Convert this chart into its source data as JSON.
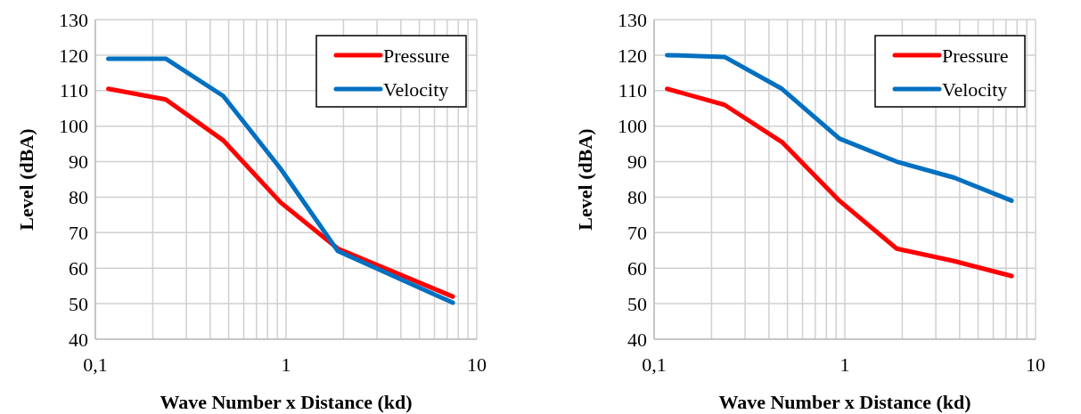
{
  "chart_data": [
    {
      "type": "line",
      "xlabel": "Wave Number x Distance (kd)",
      "ylabel": "Level (dBA)",
      "log": "x",
      "grid": true,
      "legend": "top right",
      "line_style": "solid",
      "marker": "none",
      "xlim": [
        0.1,
        10
      ],
      "ylim": [
        40,
        130
      ],
      "xticks": [
        {
          "value": 0.1,
          "label": "0,1"
        },
        {
          "value": 0.2,
          "label": null
        },
        {
          "value": 0.3,
          "label": null
        },
        {
          "value": 0.4,
          "label": null
        },
        {
          "value": 0.5,
          "label": null
        },
        {
          "value": 0.6,
          "label": null
        },
        {
          "value": 0.7,
          "label": null
        },
        {
          "value": 0.8,
          "label": null
        },
        {
          "value": 0.9,
          "label": null
        },
        {
          "value": 1,
          "label": "1"
        },
        {
          "value": 2,
          "label": null
        },
        {
          "value": 3,
          "label": null
        },
        {
          "value": 4,
          "label": null
        },
        {
          "value": 5,
          "label": null
        },
        {
          "value": 6,
          "label": null
        },
        {
          "value": 7,
          "label": null
        },
        {
          "value": 8,
          "label": null
        },
        {
          "value": 9,
          "label": null
        },
        {
          "value": 10,
          "label": "10"
        }
      ],
      "yticks": [
        40,
        50,
        60,
        70,
        80,
        90,
        100,
        110,
        120,
        130
      ],
      "x": [
        0.117,
        0.234,
        0.468,
        0.936,
        1.87,
        7.49
      ],
      "series": [
        {
          "name": "Pressure",
          "color": "#ff0000",
          "values": [
            110.5,
            107.5,
            96,
            78.5,
            65.5,
            52
          ]
        },
        {
          "name": "Velocity",
          "color": "#0070c0",
          "values": [
            119,
            119,
            108.5,
            88,
            64.8,
            50.3
          ]
        }
      ]
    },
    {
      "type": "line",
      "xlabel": "Wave Number x Distance (kd)",
      "ylabel": "Level (dBA)",
      "log": "x",
      "grid": true,
      "legend": "top right",
      "line_style": "solid",
      "marker": "none",
      "xlim": [
        0.1,
        10
      ],
      "ylim": [
        40,
        130
      ],
      "xticks": [
        {
          "value": 0.1,
          "label": "0,1"
        },
        {
          "value": 0.2,
          "label": null
        },
        {
          "value": 0.3,
          "label": null
        },
        {
          "value": 0.4,
          "label": null
        },
        {
          "value": 0.5,
          "label": null
        },
        {
          "value": 0.6,
          "label": null
        },
        {
          "value": 0.7,
          "label": null
        },
        {
          "value": 0.8,
          "label": null
        },
        {
          "value": 0.9,
          "label": null
        },
        {
          "value": 1,
          "label": "1"
        },
        {
          "value": 2,
          "label": null
        },
        {
          "value": 3,
          "label": null
        },
        {
          "value": 4,
          "label": null
        },
        {
          "value": 5,
          "label": null
        },
        {
          "value": 6,
          "label": null
        },
        {
          "value": 7,
          "label": null
        },
        {
          "value": 8,
          "label": null
        },
        {
          "value": 9,
          "label": null
        },
        {
          "value": 10,
          "label": "10"
        }
      ],
      "yticks": [
        40,
        50,
        60,
        70,
        80,
        90,
        100,
        110,
        120,
        130
      ],
      "x": [
        0.117,
        0.234,
        0.468,
        0.936,
        1.87,
        3.74,
        7.49
      ],
      "series": [
        {
          "name": "Pressure",
          "color": "#ff0000",
          "values": [
            110.5,
            106,
            95.5,
            79,
            65.5,
            62,
            57.8
          ]
        },
        {
          "name": "Velocity",
          "color": "#0070c0",
          "values": [
            120,
            119.5,
            110.5,
            96.5,
            90,
            85.5,
            79
          ]
        }
      ]
    }
  ]
}
